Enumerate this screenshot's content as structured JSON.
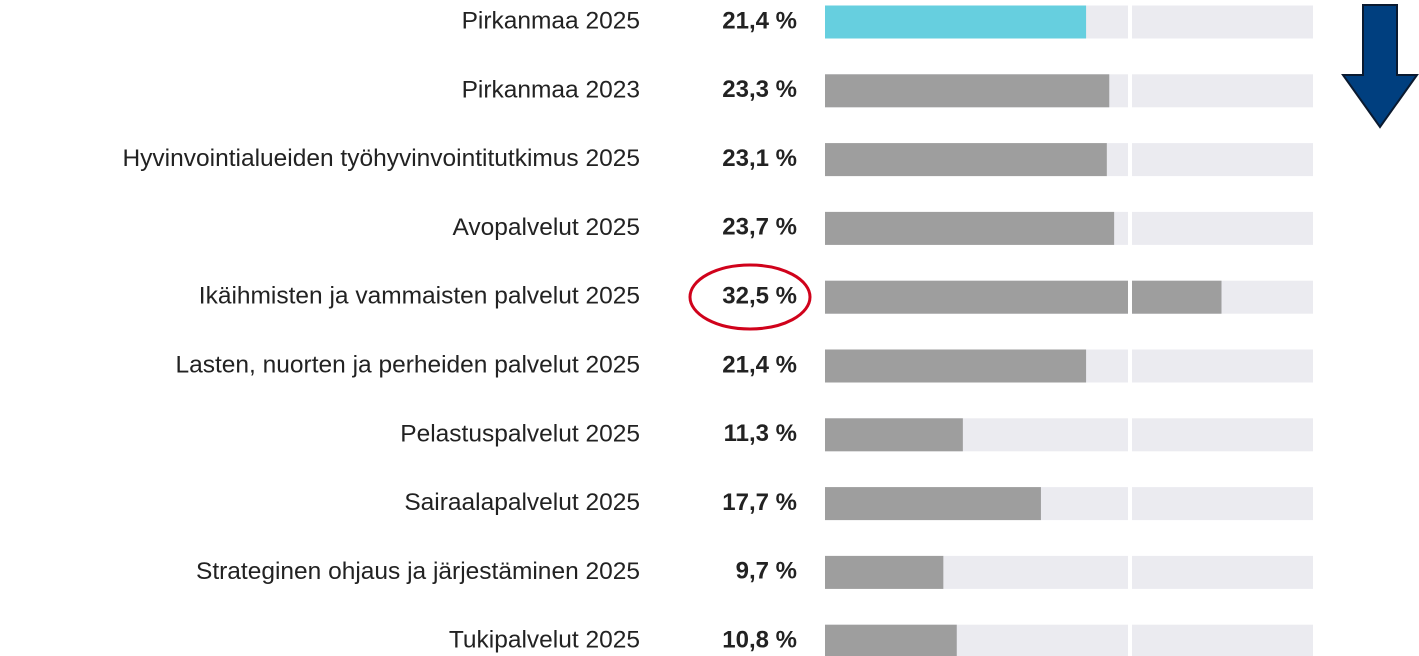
{
  "chart_data": {
    "type": "bar",
    "orientation": "horizontal",
    "categories": [
      "Pirkanmaa 2025",
      "Pirkanmaa 2023",
      "Hyvinvointialueiden työhyvinvointitutkimus 2025",
      "Avopalvelut 2025",
      "Ikäihmisten ja vammaisten palvelut 2025",
      "Lasten, nuorten ja perheiden palvelut 2025",
      "Pelastuspalvelut 2025",
      "Sairaalapalvelut 2025",
      "Strateginen ohjaus ja järjestäminen 2025",
      "Tukipalvelut 2025"
    ],
    "values": [
      21.4,
      23.3,
      23.1,
      23.7,
      32.5,
      21.4,
      11.3,
      17.7,
      9.7,
      10.8
    ],
    "value_labels": [
      "21,4 %",
      "23,3 %",
      "23,1 %",
      "23,7 %",
      "32,5 %",
      "21,4 %",
      "11,3 %",
      "17,7 %",
      "9,7 %",
      "10,8 %"
    ],
    "colors": [
      "#66cfdf",
      "#9e9e9e",
      "#9e9e9e",
      "#9e9e9e",
      "#9e9e9e",
      "#9e9e9e",
      "#9e9e9e",
      "#9e9e9e",
      "#9e9e9e",
      "#9e9e9e"
    ],
    "track_color": "#ebebf0",
    "xlim": [
      0,
      40
    ],
    "reference_lines": [
      25
    ]
  }
}
